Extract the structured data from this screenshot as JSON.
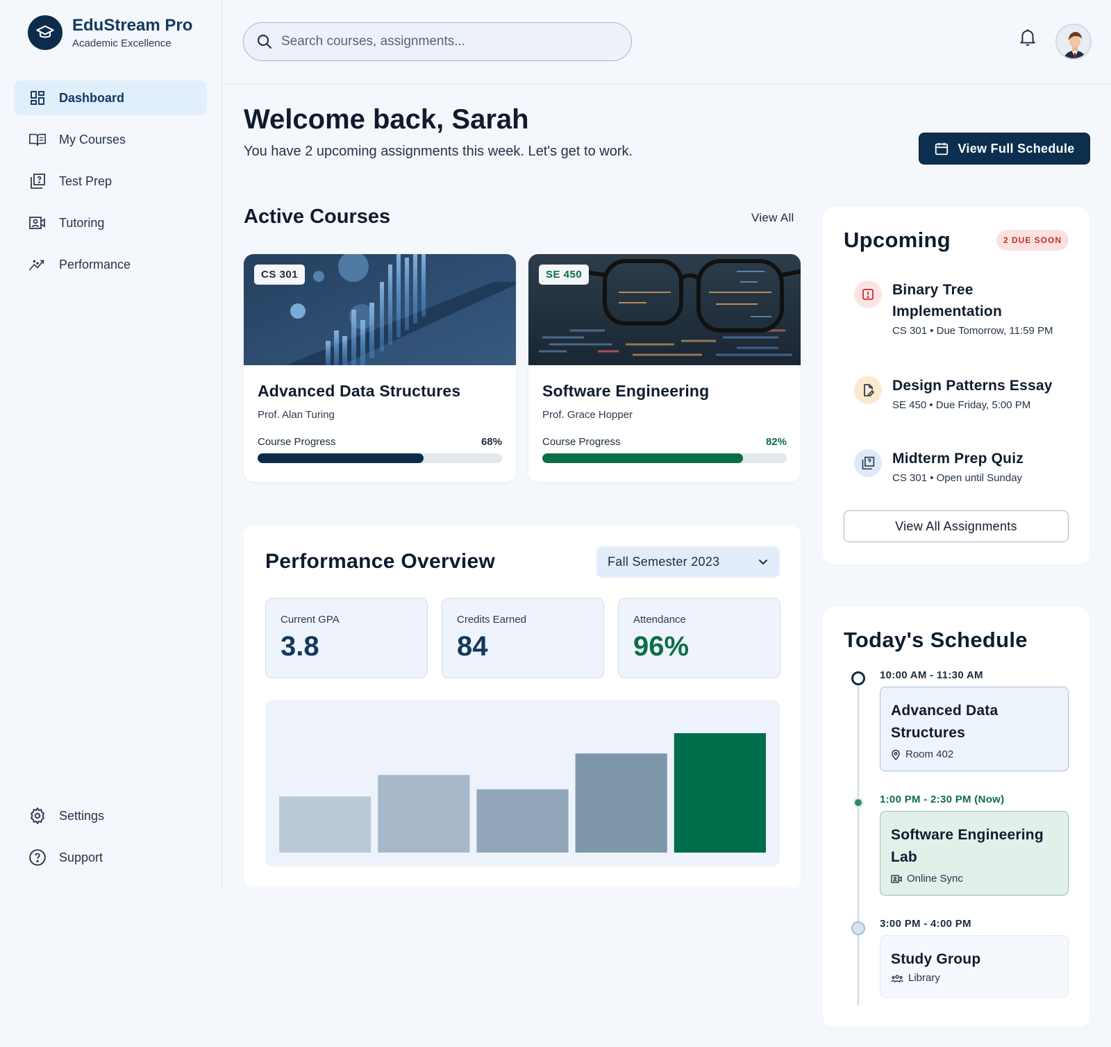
{
  "brand": {
    "name": "EduStream Pro",
    "tagline": "Academic Excellence"
  },
  "sidebar": {
    "items": [
      {
        "label": "Dashboard",
        "icon": "dashboard-icon",
        "active": true
      },
      {
        "label": "My Courses",
        "icon": "book-open-icon"
      },
      {
        "label": "Test Prep",
        "icon": "quiz-icon"
      },
      {
        "label": "Tutoring",
        "icon": "video-person-icon"
      },
      {
        "label": "Performance",
        "icon": "trend-icon"
      }
    ],
    "bottom_items": [
      {
        "label": "Settings",
        "icon": "gear-icon"
      },
      {
        "label": "Support",
        "icon": "help-circle-icon"
      }
    ]
  },
  "header": {
    "search_placeholder": "Search courses, assignments...",
    "notification_icon": "bell-icon",
    "avatar_icon": "user-avatar"
  },
  "welcome": {
    "title": "Welcome back, Sarah",
    "subtitle": "You have 2 upcoming assignments this week. Let's get to work.",
    "schedule_button": "View Full Schedule"
  },
  "courses": {
    "title": "Active Courses",
    "view_all": "View All",
    "items": [
      {
        "code": "CS 301",
        "name": "Advanced Data Structures",
        "professor": "Prof. Alan Turing",
        "progress_label": "Course Progress",
        "progress": 68,
        "progress_text": "68%",
        "color": "#0c2c4a",
        "code_color": "#1d2b3c"
      },
      {
        "code": "SE 450",
        "name": "Software Engineering",
        "professor": "Prof. Grace Hopper",
        "progress_label": "Course Progress",
        "progress": 82,
        "progress_text": "82%",
        "color": "#0b6e46",
        "code_color": "#0b6e46"
      }
    ]
  },
  "performance": {
    "title": "Performance Overview",
    "semester": "Fall Semester 2023",
    "stats": [
      {
        "label": "Current GPA",
        "value": "3.8",
        "color": "#12395e"
      },
      {
        "label": "Credits Earned",
        "value": "84",
        "color": "#12395e"
      },
      {
        "label": "Attendance",
        "value": "96%",
        "color": "#0b6e46"
      }
    ]
  },
  "chart_data": {
    "type": "bar",
    "categories": [
      "",
      "",
      "",
      "",
      ""
    ],
    "values": [
      47,
      65,
      53,
      83,
      100
    ],
    "ylim": [
      0,
      100
    ],
    "colors": [
      "#bccad8",
      "#a6b8c9",
      "#91a6b8",
      "#7d96aa",
      "#006e4a"
    ],
    "grid": false,
    "title": "",
    "xlabel": "",
    "ylabel": ""
  },
  "upcoming": {
    "title": "Upcoming",
    "badge": "2 DUE SOON",
    "items": [
      {
        "title": "Binary Tree Implementation",
        "meta": "CS 301 • Due Tomorrow, 11:59 PM",
        "icon": "alert-icon",
        "bg": "#fde4e4",
        "fg": "#c42f2c"
      },
      {
        "title": "Design Patterns Essay",
        "meta": "SE 450 • Due Friday, 5:00 PM",
        "icon": "edit-document-icon",
        "bg": "#fde9cf",
        "fg": "#2b3b4e"
      },
      {
        "title": "Midterm Prep Quiz",
        "meta": "CS 301 • Open until Sunday",
        "icon": "quiz-icon",
        "bg": "#dde9f8",
        "fg": "#2b3b4e"
      }
    ],
    "view_all_button": "View All Assignments"
  },
  "schedule": {
    "title": "Today's Schedule",
    "items": [
      {
        "time": "10:00 AM - 11:30 AM",
        "name": "Advanced Data Structures",
        "location": "Room 402",
        "icon": "location-pin-icon",
        "status": "upcoming"
      },
      {
        "time": "1:00 PM - 2:30 PM (Now)",
        "name": "Software Engineering Lab",
        "location": "Online Sync",
        "icon": "video-icon",
        "status": "now"
      },
      {
        "time": "3:00 PM - 4:00 PM",
        "name": "Study Group",
        "location": "Library",
        "icon": "group-icon",
        "status": "later"
      }
    ]
  }
}
